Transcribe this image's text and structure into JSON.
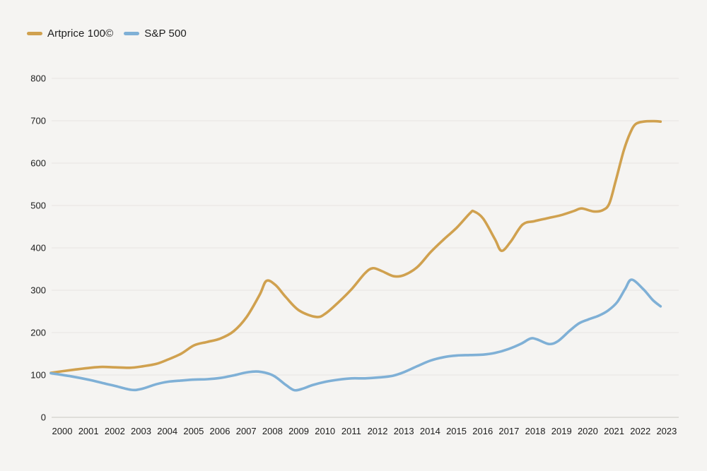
{
  "chart_data": {
    "type": "line",
    "title": "",
    "background_color": "#f5f4f2",
    "grid": true,
    "grid_color": "#e7e5e1",
    "axis_line_color": "#c9c7c3",
    "label_color": "#1c1c1c",
    "legend_position": "top-left",
    "x_axis": {
      "ticks": [
        "2000",
        "2001",
        "2002",
        "2003",
        "2004",
        "2005",
        "2006",
        "2007",
        "2008",
        "2009",
        "2010",
        "2011",
        "2012",
        "2013",
        "2014",
        "2015",
        "2016",
        "2017",
        "2018",
        "2019",
        "2020",
        "2021",
        "2022",
        "2023"
      ]
    },
    "y_axis": {
      "ticks": [
        0,
        100,
        200,
        300,
        400,
        500,
        600,
        700,
        800
      ],
      "range": [
        0,
        800
      ]
    },
    "series": [
      {
        "name": "Artprice 100©",
        "color": "#d0a14f",
        "points": [
          [
            2000.0,
            105
          ],
          [
            2000.45,
            109
          ],
          [
            2000.95,
            113
          ],
          [
            2001.5,
            117
          ],
          [
            2001.95,
            119
          ],
          [
            2002.45,
            118
          ],
          [
            2003.0,
            117
          ],
          [
            2003.45,
            120
          ],
          [
            2004.0,
            126
          ],
          [
            2004.4,
            135
          ],
          [
            2004.95,
            150
          ],
          [
            2005.45,
            170
          ],
          [
            2005.95,
            178
          ],
          [
            2006.45,
            186
          ],
          [
            2006.95,
            203
          ],
          [
            2007.45,
            237
          ],
          [
            2007.95,
            290
          ],
          [
            2008.2,
            322
          ],
          [
            2008.55,
            312
          ],
          [
            2008.95,
            283
          ],
          [
            2009.45,
            252
          ],
          [
            2010.1,
            237
          ],
          [
            2010.45,
            245
          ],
          [
            2010.95,
            272
          ],
          [
            2011.45,
            303
          ],
          [
            2011.95,
            340
          ],
          [
            2012.25,
            352
          ],
          [
            2012.6,
            345
          ],
          [
            2013.05,
            333
          ],
          [
            2013.45,
            336
          ],
          [
            2013.95,
            355
          ],
          [
            2014.45,
            390
          ],
          [
            2014.95,
            420
          ],
          [
            2015.45,
            448
          ],
          [
            2015.95,
            482
          ],
          [
            2016.1,
            486
          ],
          [
            2016.45,
            469
          ],
          [
            2016.9,
            420
          ],
          [
            2017.15,
            393
          ],
          [
            2017.5,
            415
          ],
          [
            2017.95,
            455
          ],
          [
            2018.4,
            463
          ],
          [
            2018.9,
            470
          ],
          [
            2019.4,
            477
          ],
          [
            2019.9,
            487
          ],
          [
            2020.2,
            493
          ],
          [
            2020.65,
            486
          ],
          [
            2021.0,
            489
          ],
          [
            2021.25,
            505
          ],
          [
            2021.5,
            560
          ],
          [
            2021.8,
            630
          ],
          [
            2022.05,
            672
          ],
          [
            2022.25,
            692
          ],
          [
            2022.55,
            698
          ],
          [
            2022.95,
            699
          ],
          [
            2023.2,
            698
          ]
        ]
      },
      {
        "name": "S&P 500",
        "color": "#7fb0d6",
        "points": [
          [
            2000.0,
            104
          ],
          [
            2000.75,
            97
          ],
          [
            2001.5,
            88
          ],
          [
            2002.1,
            79
          ],
          [
            2002.45,
            74
          ],
          [
            2003.05,
            65
          ],
          [
            2003.45,
            67
          ],
          [
            2004.0,
            78
          ],
          [
            2004.45,
            84
          ],
          [
            2005.0,
            87
          ],
          [
            2005.45,
            89
          ],
          [
            2005.95,
            90
          ],
          [
            2006.45,
            93
          ],
          [
            2006.95,
            99
          ],
          [
            2007.45,
            106
          ],
          [
            2007.9,
            108
          ],
          [
            2008.45,
            99
          ],
          [
            2008.95,
            76
          ],
          [
            2009.27,
            64
          ],
          [
            2009.6,
            68
          ],
          [
            2009.95,
            76
          ],
          [
            2010.45,
            84
          ],
          [
            2010.95,
            89
          ],
          [
            2011.45,
            92
          ],
          [
            2011.95,
            92
          ],
          [
            2012.45,
            94
          ],
          [
            2013.0,
            98
          ],
          [
            2013.45,
            107
          ],
          [
            2013.95,
            121
          ],
          [
            2014.45,
            134
          ],
          [
            2014.95,
            142
          ],
          [
            2015.45,
            146
          ],
          [
            2015.95,
            147
          ],
          [
            2016.45,
            148
          ],
          [
            2016.9,
            152
          ],
          [
            2017.4,
            161
          ],
          [
            2017.9,
            174
          ],
          [
            2018.25,
            186
          ],
          [
            2018.5,
            184
          ],
          [
            2018.95,
            173
          ],
          [
            2019.3,
            180
          ],
          [
            2019.75,
            205
          ],
          [
            2020.1,
            222
          ],
          [
            2020.45,
            231
          ],
          [
            2020.85,
            240
          ],
          [
            2021.2,
            252
          ],
          [
            2021.55,
            272
          ],
          [
            2021.85,
            303
          ],
          [
            2022.1,
            325
          ],
          [
            2022.55,
            302
          ],
          [
            2022.9,
            277
          ],
          [
            2023.2,
            262
          ]
        ]
      }
    ]
  }
}
